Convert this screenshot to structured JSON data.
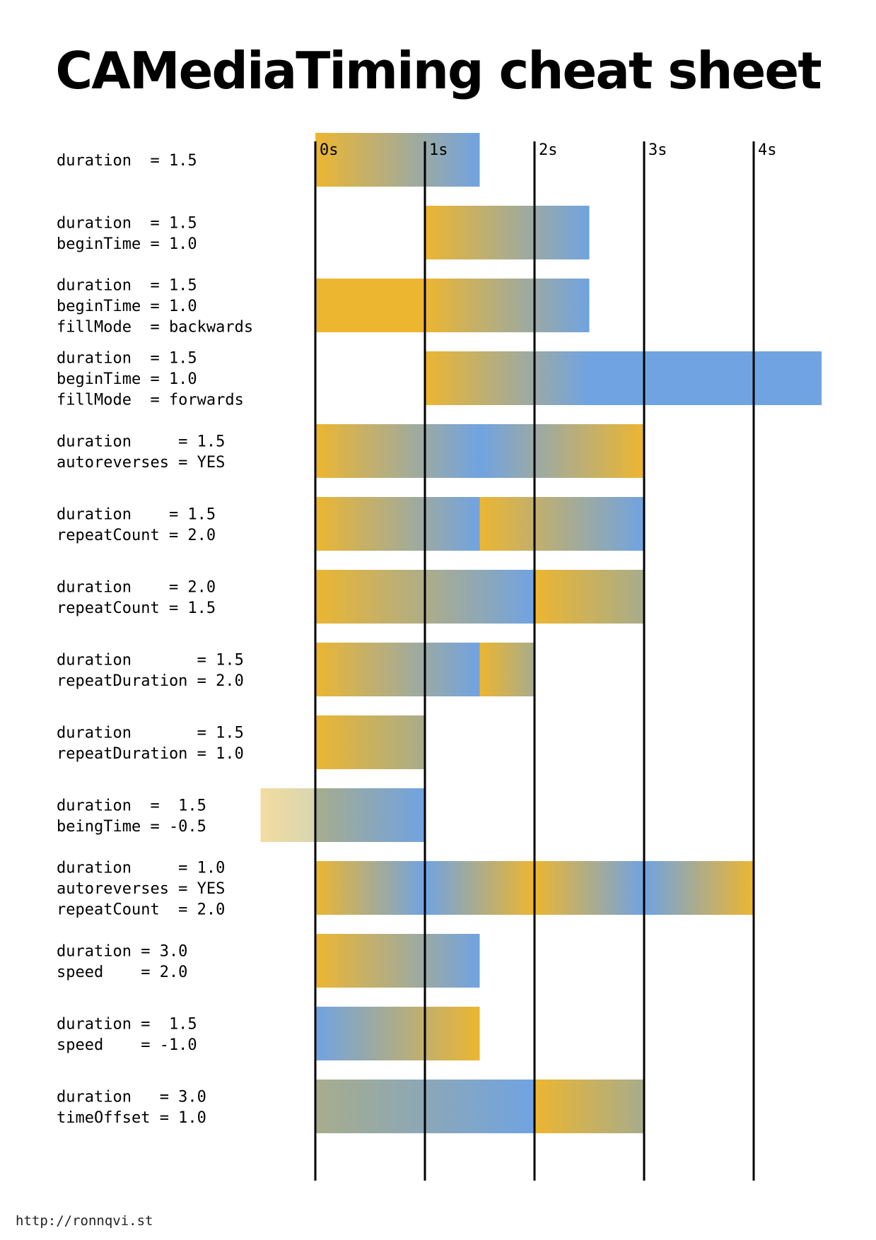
{
  "title": "CAMediaTiming cheat sheet",
  "footer": "http://ronnqvi.st",
  "colors": {
    "yellow": "#ecb630",
    "blue": "#70a3e2",
    "light_yellow": "#f3dca0",
    "axis": "#000000"
  },
  "chart_data": {
    "type": "timeline",
    "axis": {
      "unit": "s",
      "ticks": [
        0,
        1,
        2,
        3,
        4
      ],
      "tick_labels": [
        "0s",
        "1s",
        "2s",
        "3s",
        "4s"
      ]
    },
    "rows": [
      {
        "lines": [
          "duration  = 1.5"
        ],
        "segments": [
          {
            "start": 0,
            "end": 1.5,
            "stops": [
              [
                "yellow",
                0
              ],
              [
                "blue",
                1
              ]
            ]
          }
        ]
      },
      {
        "lines": [
          "duration  = 1.5",
          "beginTime = 1.0"
        ],
        "segments": [
          {
            "start": 1,
            "end": 2.5,
            "stops": [
              [
                "yellow",
                0
              ],
              [
                "blue",
                1
              ]
            ]
          }
        ]
      },
      {
        "lines": [
          "duration  = 1.5",
          "beginTime = 1.0",
          "fillMode  = backwards"
        ],
        "segments": [
          {
            "start": 0,
            "end": 2.5,
            "stops": [
              [
                "yellow",
                0
              ],
              [
                "yellow",
                0.4
              ],
              [
                "blue",
                1
              ]
            ]
          }
        ]
      },
      {
        "lines": [
          "duration  = 1.5",
          "beginTime = 1.0",
          "fillMode  = forwards"
        ],
        "segments": [
          {
            "start": 1,
            "end": 4.62,
            "stops": [
              [
                "yellow",
                0
              ],
              [
                "blue",
                0.414
              ],
              [
                "blue",
                1
              ]
            ]
          }
        ]
      },
      {
        "lines": [
          "duration     = 1.5",
          "autoreverses = YES"
        ],
        "segments": [
          {
            "start": 0,
            "end": 3,
            "stops": [
              [
                "yellow",
                0
              ],
              [
                "blue",
                0.5
              ],
              [
                "yellow",
                1
              ]
            ]
          }
        ]
      },
      {
        "lines": [
          "duration    = 1.5",
          "repeatCount = 2.0"
        ],
        "segments": [
          {
            "start": 0,
            "end": 1.5,
            "stops": [
              [
                "yellow",
                0
              ],
              [
                "blue",
                1
              ]
            ]
          },
          {
            "start": 1.5,
            "end": 3,
            "stops": [
              [
                "yellow",
                0
              ],
              [
                "blue",
                1
              ]
            ]
          }
        ]
      },
      {
        "lines": [
          "duration    = 2.0",
          "repeatCount = 1.5"
        ],
        "segments": [
          {
            "start": 0,
            "end": 2,
            "stops": [
              [
                "yellow",
                0
              ],
              [
                "blue",
                1
              ]
            ]
          },
          {
            "start": 2,
            "end": 3,
            "stops": [
              [
                "yellow",
                0
              ],
              [
                "mid",
                1
              ]
            ]
          }
        ]
      },
      {
        "lines": [
          "duration       = 1.5",
          "repeatDuration = 2.0"
        ],
        "segments": [
          {
            "start": 0,
            "end": 1.5,
            "stops": [
              [
                "yellow",
                0
              ],
              [
                "blue",
                1
              ]
            ]
          },
          {
            "start": 1.5,
            "end": 2,
            "stops": [
              [
                "yellow",
                0
              ],
              [
                "mid",
                1
              ]
            ]
          }
        ]
      },
      {
        "lines": [
          "duration       = 1.5",
          "repeatDuration = 1.0"
        ],
        "segments": [
          {
            "start": 0,
            "end": 1,
            "stops": [
              [
                "yellow",
                0
              ],
              [
                "mid",
                1
              ]
            ]
          }
        ]
      },
      {
        "lines": [
          "duration  =  1.5",
          "beingTime = -0.5"
        ],
        "segments": [
          {
            "start": -0.5,
            "end": 0,
            "stops": [
              [
                "light_yellow",
                0
              ],
              [
                "light_mix",
                1
              ]
            ]
          },
          {
            "start": 0,
            "end": 1,
            "stops": [
              [
                "mid",
                0
              ],
              [
                "blue",
                1
              ]
            ]
          }
        ]
      },
      {
        "lines": [
          "duration     = 1.0",
          "autoreverses = YES",
          "repeatCount  = 2.0"
        ],
        "segments": [
          {
            "start": 0,
            "end": 4,
            "stops": [
              [
                "yellow",
                0
              ],
              [
                "blue",
                0.25
              ],
              [
                "yellow",
                0.5
              ],
              [
                "blue",
                0.75
              ],
              [
                "yellow",
                1
              ]
            ]
          }
        ]
      },
      {
        "lines": [
          "duration = 3.0",
          "speed    = 2.0"
        ],
        "segments": [
          {
            "start": 0,
            "end": 1.5,
            "stops": [
              [
                "yellow",
                0
              ],
              [
                "blue",
                1
              ]
            ]
          }
        ]
      },
      {
        "lines": [
          "duration =  1.5",
          "speed    = -1.0"
        ],
        "segments": [
          {
            "start": 0,
            "end": 1.5,
            "stops": [
              [
                "blue",
                0
              ],
              [
                "yellow",
                1
              ]
            ]
          }
        ]
      },
      {
        "lines": [
          "duration   = 3.0",
          "timeOffset = 1.0"
        ],
        "segments": [
          {
            "start": 0,
            "end": 2,
            "stops": [
              [
                "mid",
                0
              ],
              [
                "blue",
                1
              ]
            ]
          },
          {
            "start": 2,
            "end": 3,
            "stops": [
              [
                "yellow",
                0
              ],
              [
                "mid",
                1
              ]
            ]
          }
        ]
      }
    ]
  }
}
